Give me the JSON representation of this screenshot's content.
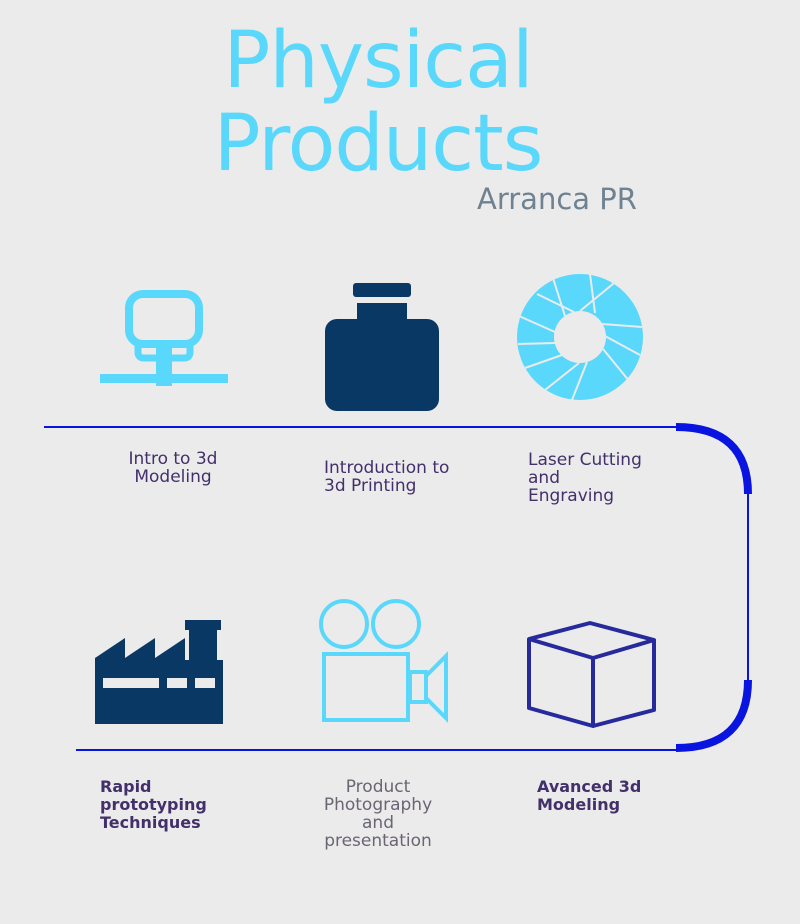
{
  "header": {
    "title_line1": "Physical",
    "title_line2": "Products",
    "subtitle": "Arranca PR"
  },
  "colors": {
    "title": "#5ad8fb",
    "light_blue": "#5ad8fb",
    "dark_navy": "#0a3864",
    "line_blue": "#0a14e0",
    "text": "#43306a",
    "background": "#ebebeb"
  },
  "steps": [
    {
      "icon": "network-computer-icon",
      "lines": [
        "Intro to 3d",
        "Modeling"
      ]
    },
    {
      "icon": "bottle-icon",
      "lines": [
        "Introduction to",
        "3d Printing"
      ]
    },
    {
      "icon": "aperture-icon",
      "lines": [
        "Laser Cutting",
        "and",
        "Engraving"
      ]
    },
    {
      "icon": "factory-icon",
      "lines": [
        "Rapid",
        "prototyping",
        "Techniques"
      ]
    },
    {
      "icon": "video-camera-icon",
      "lines": [
        "Product",
        "Photography",
        "and",
        "presentation"
      ]
    },
    {
      "icon": "cube-icon",
      "lines": [
        "Avanced 3d",
        "Modeling"
      ]
    }
  ]
}
